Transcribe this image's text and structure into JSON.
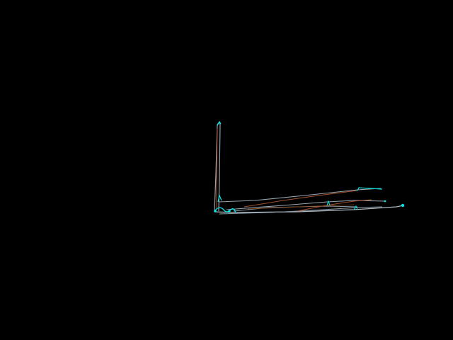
{
  "scene": {
    "background_color": "#000000",
    "primary_line_color": "#8a9aa6",
    "secondary_line_color": "#a0522d",
    "accent_color": "#00e5e5"
  }
}
